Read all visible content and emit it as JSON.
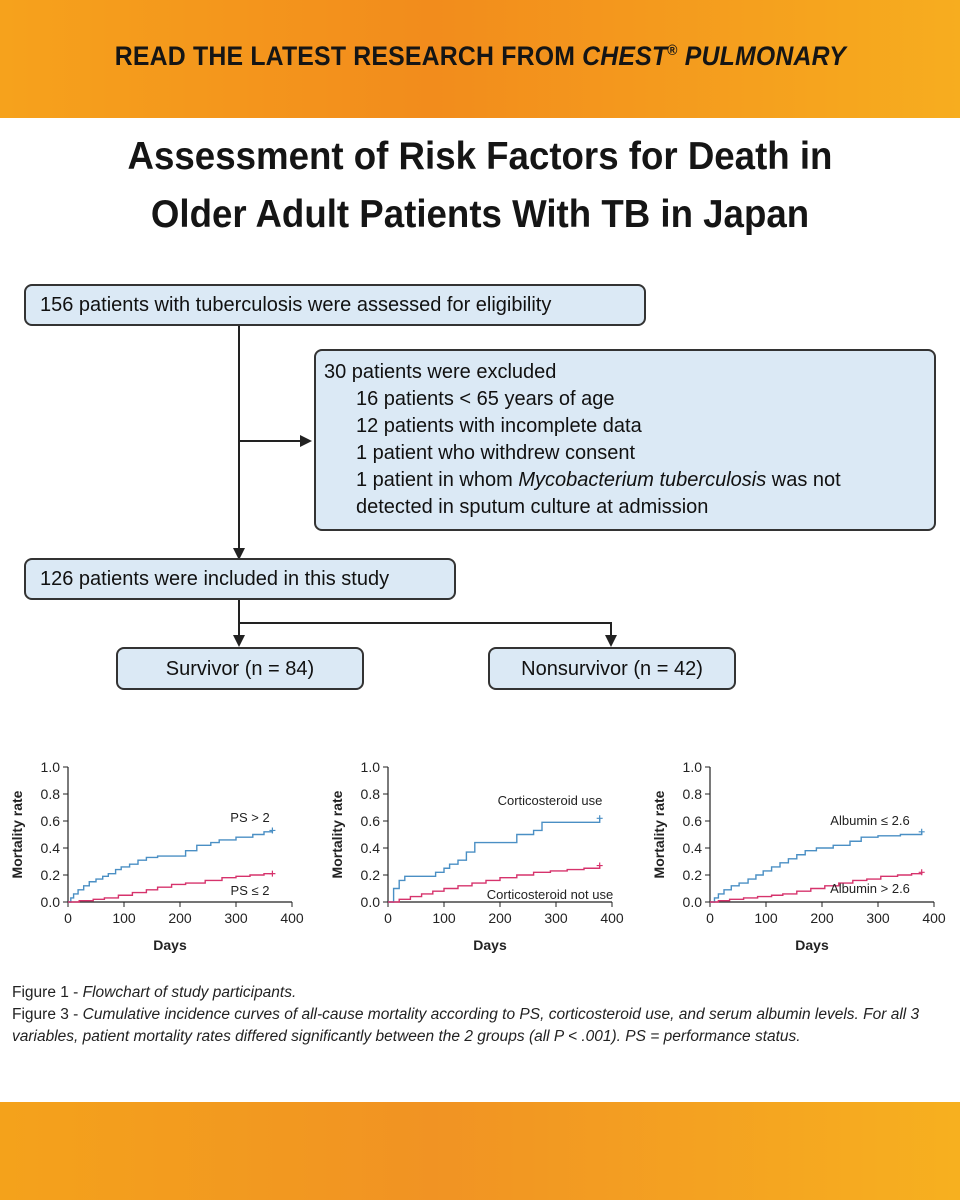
{
  "banner": {
    "text_before": "READ THE LATEST RESEARCH FROM ",
    "journal": "CHEST",
    "registered": "®",
    "text_after": " PULMONARY"
  },
  "title": {
    "line1": "Assessment of Risk Factors for Death in",
    "line2": "Older Adult Patients With TB in Japan"
  },
  "flowchart": {
    "assessed": "156 patients with tuberculosis were assessed for eligibility",
    "excluded": {
      "header": "30 patients were excluded",
      "item1": "16 patients < 65 years of age",
      "item2": "12 patients with incomplete data",
      "item3": "1 patient who withdrew consent",
      "item4_before": "1 patient in whom ",
      "item4_italic": "Mycobacterium tuberculosis",
      "item4_after": " was not",
      "item5": "detected in sputum culture at admission"
    },
    "included": "126 patients were included in this study",
    "survivor": "Survivor (n = 84)",
    "nonsurvivor": "Nonsurvivor (n = 42)"
  },
  "chart_data": [
    {
      "type": "line",
      "ylabel": "Mortality rate",
      "xlabel": "Days",
      "xlim": [
        0,
        400
      ],
      "ylim": [
        0,
        1.0
      ],
      "xticks": [
        "0",
        "100",
        "200",
        "300",
        "400"
      ],
      "yticks": [
        "0.0",
        "0.2",
        "0.4",
        "0.6",
        "0.8",
        "1.0"
      ],
      "series": [
        {
          "name": "PS > 2",
          "color": "#4a8fc4",
          "points": [
            [
              0,
              0
            ],
            [
              5,
              0.03
            ],
            [
              10,
              0.06
            ],
            [
              18,
              0.09
            ],
            [
              28,
              0.12
            ],
            [
              38,
              0.15
            ],
            [
              50,
              0.17
            ],
            [
              62,
              0.19
            ],
            [
              72,
              0.21
            ],
            [
              85,
              0.24
            ],
            [
              95,
              0.26
            ],
            [
              110,
              0.28
            ],
            [
              125,
              0.31
            ],
            [
              140,
              0.33
            ],
            [
              160,
              0.34
            ],
            [
              175,
              0.34
            ],
            [
              200,
              0.34
            ],
            [
              210,
              0.38
            ],
            [
              230,
              0.42
            ],
            [
              255,
              0.44
            ],
            [
              270,
              0.46
            ],
            [
              300,
              0.48
            ],
            [
              330,
              0.5
            ],
            [
              350,
              0.52
            ],
            [
              365,
              0.53
            ]
          ]
        },
        {
          "name": "PS ≤ 2",
          "color": "#d6336c",
          "points": [
            [
              0,
              0
            ],
            [
              20,
              0.01
            ],
            [
              45,
              0.02
            ],
            [
              65,
              0.03
            ],
            [
              90,
              0.05
            ],
            [
              115,
              0.07
            ],
            [
              140,
              0.09
            ],
            [
              160,
              0.11
            ],
            [
              185,
              0.13
            ],
            [
              210,
              0.14
            ],
            [
              245,
              0.16
            ],
            [
              275,
              0.18
            ],
            [
              300,
              0.19
            ],
            [
              325,
              0.2
            ],
            [
              350,
              0.21
            ],
            [
              365,
              0.21
            ]
          ]
        }
      ]
    },
    {
      "type": "line",
      "ylabel": "Mortality rate",
      "xlabel": "Days",
      "xlim": [
        0,
        400
      ],
      "ylim": [
        0,
        1.0
      ],
      "xticks": [
        "0",
        "100",
        "200",
        "300",
        "400"
      ],
      "yticks": [
        "0.0",
        "0.2",
        "0.4",
        "0.6",
        "0.8",
        "1.0"
      ],
      "series": [
        {
          "name": "Corticosteroid use",
          "color": "#4a8fc4",
          "points": [
            [
              0,
              0
            ],
            [
              10,
              0.1
            ],
            [
              20,
              0.16
            ],
            [
              30,
              0.19
            ],
            [
              55,
              0.19
            ],
            [
              85,
              0.22
            ],
            [
              100,
              0.25
            ],
            [
              110,
              0.28
            ],
            [
              125,
              0.31
            ],
            [
              140,
              0.37
            ],
            [
              155,
              0.44
            ],
            [
              175,
              0.44
            ],
            [
              230,
              0.5
            ],
            [
              260,
              0.53
            ],
            [
              275,
              0.59
            ],
            [
              300,
              0.59
            ],
            [
              365,
              0.59
            ],
            [
              378,
              0.62
            ]
          ]
        },
        {
          "name": "Corticosteroid not use",
          "color": "#d6336c",
          "points": [
            [
              0,
              0
            ],
            [
              20,
              0.02
            ],
            [
              40,
              0.04
            ],
            [
              60,
              0.06
            ],
            [
              80,
              0.08
            ],
            [
              100,
              0.1
            ],
            [
              125,
              0.12
            ],
            [
              150,
              0.14
            ],
            [
              175,
              0.16
            ],
            [
              200,
              0.18
            ],
            [
              230,
              0.2
            ],
            [
              260,
              0.22
            ],
            [
              290,
              0.23
            ],
            [
              320,
              0.24
            ],
            [
              350,
              0.25
            ],
            [
              378,
              0.27
            ]
          ]
        }
      ]
    },
    {
      "type": "line",
      "ylabel": "Mortality rate",
      "xlabel": "Days",
      "xlim": [
        0,
        400
      ],
      "ylim": [
        0,
        1.0
      ],
      "xticks": [
        "0",
        "100",
        "200",
        "300",
        "400"
      ],
      "yticks": [
        "0.0",
        "0.2",
        "0.4",
        "0.6",
        "0.8",
        "1.0"
      ],
      "series": [
        {
          "name": "Albumin ≤ 2.6",
          "color": "#4a8fc4",
          "points": [
            [
              0,
              0
            ],
            [
              8,
              0.03
            ],
            [
              15,
              0.06
            ],
            [
              25,
              0.09
            ],
            [
              38,
              0.12
            ],
            [
              52,
              0.14
            ],
            [
              68,
              0.17
            ],
            [
              82,
              0.2
            ],
            [
              95,
              0.23
            ],
            [
              110,
              0.26
            ],
            [
              125,
              0.29
            ],
            [
              140,
              0.32
            ],
            [
              155,
              0.35
            ],
            [
              170,
              0.38
            ],
            [
              190,
              0.4
            ],
            [
              220,
              0.42
            ],
            [
              250,
              0.45
            ],
            [
              270,
              0.48
            ],
            [
              300,
              0.49
            ],
            [
              340,
              0.5
            ],
            [
              378,
              0.52
            ]
          ]
        },
        {
          "name": "Albumin > 2.6",
          "color": "#d6336c",
          "points": [
            [
              0,
              0
            ],
            [
              15,
              0.01
            ],
            [
              35,
              0.02
            ],
            [
              60,
              0.03
            ],
            [
              85,
              0.04
            ],
            [
              110,
              0.05
            ],
            [
              130,
              0.06
            ],
            [
              155,
              0.08
            ],
            [
              180,
              0.1
            ],
            [
              205,
              0.12
            ],
            [
              230,
              0.14
            ],
            [
              255,
              0.16
            ],
            [
              280,
              0.17
            ],
            [
              305,
              0.19
            ],
            [
              335,
              0.2
            ],
            [
              360,
              0.21
            ],
            [
              378,
              0.22
            ]
          ]
        }
      ]
    }
  ],
  "captions": {
    "fig1_label": "Figure 1 - ",
    "fig1_text": "Flowchart of study participants.",
    "fig3_label": "Figure 3 - ",
    "fig3_text": "Cumulative incidence curves of all-cause mortality according to PS, corticosteroid use, and serum albumin levels. For all 3 variables, patient mortality rates differed significantly between the 2 groups (all P < .001). PS = performance status."
  }
}
